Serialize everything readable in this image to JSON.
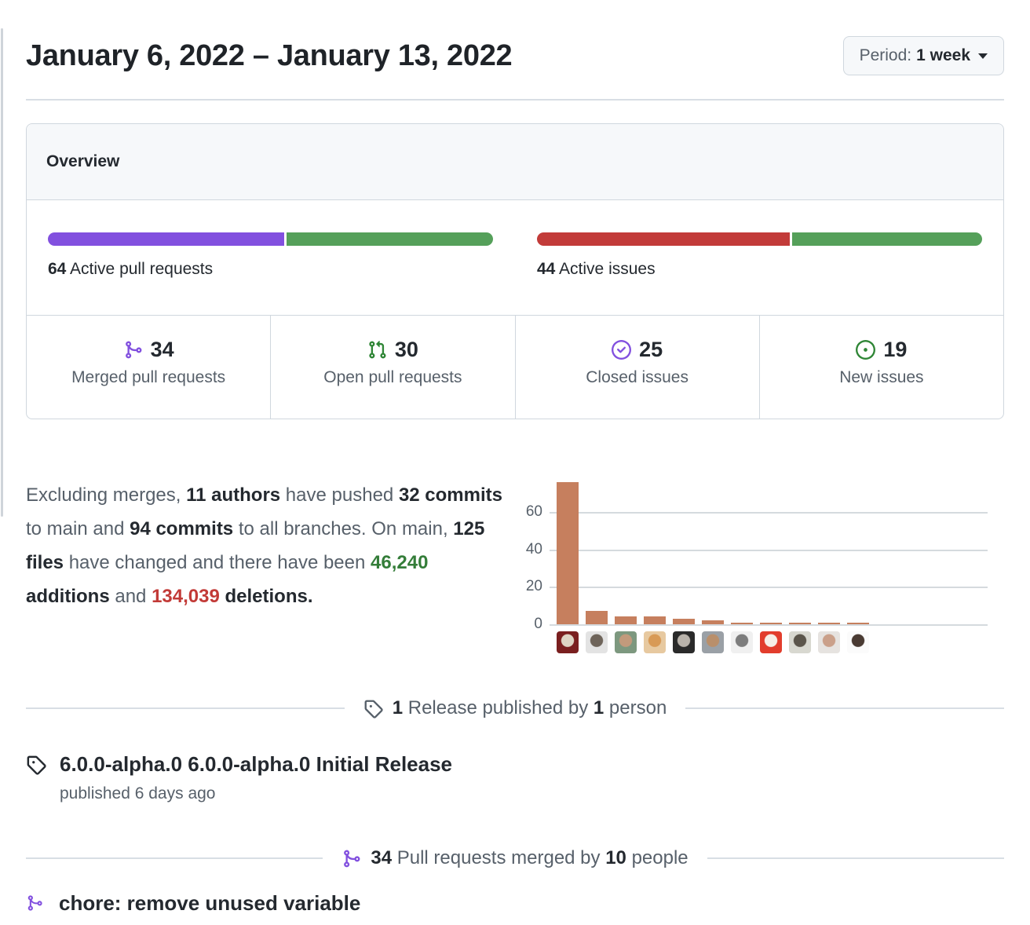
{
  "page": {
    "title": "January 6, 2022 – January 13, 2022"
  },
  "period_button": {
    "label": "Period:",
    "value": "1 week"
  },
  "overview": {
    "header": "Overview",
    "pull_requests": {
      "count": "64",
      "label": "Active pull requests",
      "split_percent": [
        53.1,
        46.9
      ],
      "colors": [
        "#8250df",
        "#55a05a"
      ]
    },
    "issues": {
      "count": "44",
      "label": "Active issues",
      "split_percent": [
        56.8,
        43.2
      ],
      "colors": [
        "#c23b39",
        "#55a05a"
      ]
    },
    "stats": [
      {
        "icon": "git-merge-icon",
        "color": "#8250df",
        "count": "34",
        "label": "Merged pull requests"
      },
      {
        "icon": "git-pull-request-icon",
        "color": "#2f8636",
        "count": "30",
        "label": "Open pull requests"
      },
      {
        "icon": "issue-closed-icon",
        "color": "#8250df",
        "count": "25",
        "label": "Closed issues"
      },
      {
        "icon": "issue-opened-icon",
        "color": "#2f8636",
        "count": "19",
        "label": "New issues"
      }
    ]
  },
  "summary": {
    "segments": [
      {
        "text": "Excluding merges, ",
        "style": "muted"
      },
      {
        "text": "11 authors",
        "style": "bold"
      },
      {
        "text": " have pushed ",
        "style": "muted"
      },
      {
        "text": "32 commits",
        "style": "bold"
      },
      {
        "text": " to main and ",
        "style": "muted"
      },
      {
        "text": "94 commits",
        "style": "bold"
      },
      {
        "text": " to all branches. On main, ",
        "style": "muted"
      },
      {
        "text": "125 files",
        "style": "bold"
      },
      {
        "text": " have changed and there have been ",
        "style": "muted"
      },
      {
        "text": "46,240",
        "style": "additions"
      },
      {
        "text": " ",
        "style": "muted"
      },
      {
        "text": "additions",
        "style": "bold"
      },
      {
        "text": " and ",
        "style": "muted"
      },
      {
        "text": "134,039",
        "style": "deletions"
      },
      {
        "text": " ",
        "style": "muted"
      },
      {
        "text": "deletions",
        "style": "bold"
      },
      {
        "text": ".",
        "style": "bold"
      }
    ]
  },
  "chart_data": {
    "type": "bar",
    "title": "",
    "xlabel": "",
    "ylabel": "",
    "categories": [
      "author-1",
      "author-2",
      "author-3",
      "author-4",
      "author-5",
      "author-6",
      "author-7",
      "author-8",
      "author-9",
      "author-10",
      "author-11"
    ],
    "values": [
      76,
      7,
      4,
      4,
      3,
      2,
      1,
      1,
      1,
      1,
      1
    ],
    "ylim": [
      0,
      78
    ],
    "yticks": [
      0,
      20,
      40,
      60
    ],
    "grid": true,
    "legend": false,
    "bar_color": "#c67f5e",
    "avatars": [
      {
        "bg": "#7a1f1f",
        "fg": "#ded4c4"
      },
      {
        "bg": "#e3e3e3",
        "fg": "#6e645a"
      },
      {
        "bg": "#7d987f",
        "fg": "#c29a7c"
      },
      {
        "bg": "#e7c9a0",
        "fg": "#d89a56"
      },
      {
        "bg": "#2a2a2a",
        "fg": "#b9b3ab"
      },
      {
        "bg": "#9aa0a6",
        "fg": "#b98f6b"
      },
      {
        "bg": "#f0f0f0",
        "fg": "#7d7d7d"
      },
      {
        "bg": "#e23d2c",
        "fg": "#f6efe7"
      },
      {
        "bg": "#d8d8d0",
        "fg": "#5b554b"
      },
      {
        "bg": "#e6e3e0",
        "fg": "#caa08a"
      },
      {
        "bg": "#fbfbfb",
        "fg": "#4a3b33"
      }
    ]
  },
  "release_section": {
    "divider_segments": [
      {
        "text": "1",
        "style": "bold"
      },
      {
        "text": " Release published by ",
        "style": "muted"
      },
      {
        "text": "1",
        "style": "bold"
      },
      {
        "text": " person",
        "style": "muted"
      }
    ],
    "release": {
      "title": "6.0.0-alpha.0 6.0.0-alpha.0 Initial Release",
      "published": "published 6 days ago"
    }
  },
  "merged_section": {
    "divider_segments": [
      {
        "text": "34",
        "style": "bold"
      },
      {
        "text": " Pull requests merged by ",
        "style": "muted"
      },
      {
        "text": "10",
        "style": "bold"
      },
      {
        "text": " people",
        "style": "muted"
      }
    ],
    "items": [
      {
        "title": "chore: remove unused variable"
      }
    ]
  },
  "colors": {
    "accent_purple": "#8250df",
    "green_bar": "#55a05a",
    "red_bar": "#c23b39",
    "icon_green": "#2f8636",
    "additions_green": "#347d39",
    "deletions_red": "#c23a37",
    "chart_bar": "#c67f5e"
  }
}
